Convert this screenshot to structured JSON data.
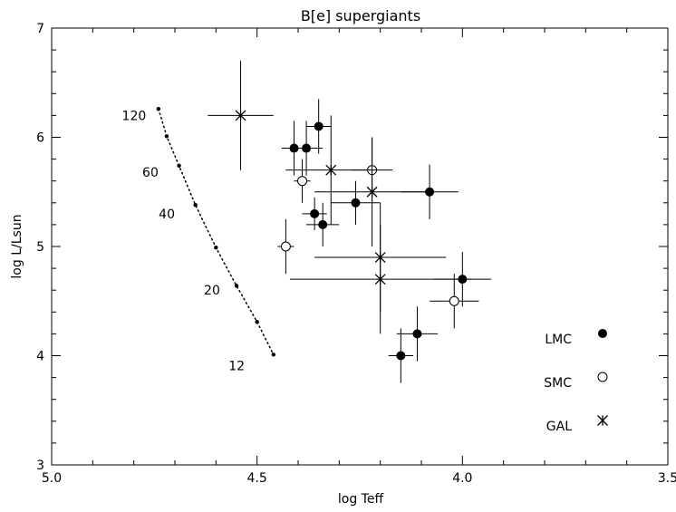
{
  "chart_data": {
    "type": "scatter",
    "title": "B[e] supergiants",
    "xlabel": "log Teff",
    "ylabel": "log L/Lsun",
    "xlim": [
      5.0,
      3.5
    ],
    "ylim": [
      3,
      7
    ],
    "x_reversed": true,
    "xticks": [
      "5.0",
      "4.5",
      "4.0",
      "3.5"
    ],
    "yticks": [
      "3",
      "4",
      "5",
      "6",
      "7"
    ],
    "grid": false,
    "legend_position": "right",
    "track": {
      "x": [
        4.74,
        4.72,
        4.69,
        4.65,
        4.6,
        4.55,
        4.5,
        4.46
      ],
      "y": [
        6.26,
        6.01,
        5.74,
        5.38,
        4.99,
        4.64,
        4.31,
        4.01
      ],
      "labels": [
        {
          "text": "120",
          "x": 4.77,
          "y": 6.2
        },
        {
          "text": "60",
          "x": 4.74,
          "y": 5.68
        },
        {
          "text": "40",
          "x": 4.7,
          "y": 5.3
        },
        {
          "text": "20",
          "x": 4.59,
          "y": 4.6
        },
        {
          "text": "12",
          "x": 4.53,
          "y": 3.91
        }
      ]
    },
    "series": [
      {
        "name": "LMC",
        "marker": "filled-circle",
        "points": [
          {
            "x": 4.41,
            "y": 5.9,
            "xerr": 0.03,
            "yerr": 0.25
          },
          {
            "x": 4.38,
            "y": 5.9,
            "xerr": 0.04,
            "yerr": 0.25
          },
          {
            "x": 4.35,
            "y": 6.1,
            "xerr": 0.03,
            "yerr": 0.25
          },
          {
            "x": 4.36,
            "y": 5.3,
            "xerr": 0.03,
            "yerr": 0.15
          },
          {
            "x": 4.34,
            "y": 5.2,
            "xerr": 0.04,
            "yerr": 0.2
          },
          {
            "x": 4.26,
            "y": 5.4,
            "xerr": 0.06,
            "yerr": 0.2
          },
          {
            "x": 4.08,
            "y": 5.5,
            "xerr": 0.07,
            "yerr": 0.25
          },
          {
            "x": 4.0,
            "y": 4.7,
            "xerr": 0.07,
            "yerr": 0.25
          },
          {
            "x": 4.15,
            "y": 4.0,
            "xerr": 0.03,
            "yerr": 0.25
          },
          {
            "x": 4.11,
            "y": 4.2,
            "xerr": 0.05,
            "yerr": 0.25
          }
        ]
      },
      {
        "name": "SMC",
        "marker": "open-circle",
        "points": [
          {
            "x": 4.22,
            "y": 5.7,
            "xerr": 0.05,
            "yerr": 0.3
          },
          {
            "x": 4.39,
            "y": 5.6,
            "xerr": 0.02,
            "yerr": 0.2
          },
          {
            "x": 4.43,
            "y": 5.0,
            "xerr": 0.02,
            "yerr": 0.25
          },
          {
            "x": 4.02,
            "y": 4.5,
            "xerr": 0.06,
            "yerr": 0.25
          }
        ]
      },
      {
        "name": "GAL",
        "marker": "asterisk",
        "points": [
          {
            "x": 4.54,
            "y": 6.2,
            "xerr": 0.08,
            "yerr": 0.5
          },
          {
            "x": 4.32,
            "y": 5.7,
            "xerr": 0.11,
            "yerr": 0.5
          },
          {
            "x": 4.22,
            "y": 5.5,
            "xerr": 0.14,
            "yerr": 0.5
          },
          {
            "x": 4.2,
            "y": 4.9,
            "xerr": 0.16,
            "yerr": 0.5
          },
          {
            "x": 4.2,
            "y": 4.7,
            "xerr": 0.22,
            "yerr": 0.5
          }
        ]
      }
    ]
  }
}
